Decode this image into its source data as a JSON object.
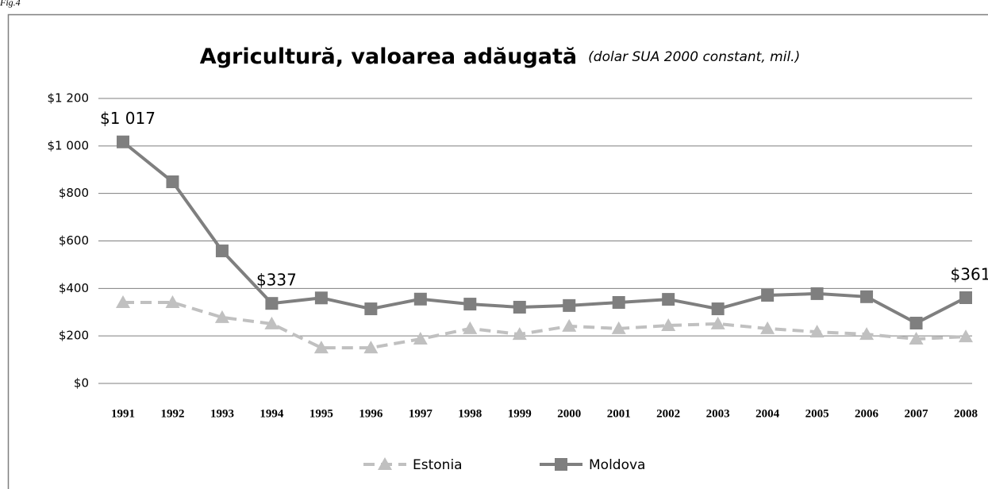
{
  "figure_label": "Fig.4",
  "chart_data": {
    "type": "line",
    "title": "Agricultură, valoarea adăugată",
    "subtitle": "(dolar SUA 2000 constant, mil.)",
    "categories": [
      "1991",
      "1992",
      "1993",
      "1994",
      "1995",
      "1996",
      "1997",
      "1998",
      "1999",
      "2000",
      "2001",
      "2002",
      "2003",
      "2004",
      "2005",
      "2006",
      "2007",
      "2008"
    ],
    "series": [
      {
        "name": "Estonia",
        "color": "#c0c0c0",
        "style": "dashed",
        "marker": "triangle",
        "values": [
          341,
          341,
          278,
          251,
          150,
          150,
          187,
          231,
          207,
          241,
          231,
          244,
          251,
          231,
          217,
          207,
          187,
          197
        ]
      },
      {
        "name": "Moldova",
        "color": "#7f7f7f",
        "style": "solid",
        "marker": "square",
        "values": [
          1017,
          849,
          558,
          337,
          360,
          314,
          355,
          334,
          321,
          328,
          341,
          354,
          314,
          371,
          378,
          365,
          254,
          361
        ],
        "value_labels": [
          "$1 017",
          null,
          null,
          "$337",
          null,
          null,
          null,
          null,
          null,
          null,
          null,
          null,
          null,
          null,
          null,
          null,
          null,
          "$361"
        ]
      }
    ],
    "ylim": [
      0,
      1200
    ],
    "yticks": [
      {
        "value": 0,
        "label": "$0"
      },
      {
        "value": 200,
        "label": "$200"
      },
      {
        "value": 400,
        "label": "$400"
      },
      {
        "value": 600,
        "label": "$600"
      },
      {
        "value": 800,
        "label": "$800"
      },
      {
        "value": 1000,
        "label": "$1 000"
      },
      {
        "value": 1200,
        "label": "$1 200"
      }
    ],
    "grid": true,
    "legend": "bottom"
  }
}
